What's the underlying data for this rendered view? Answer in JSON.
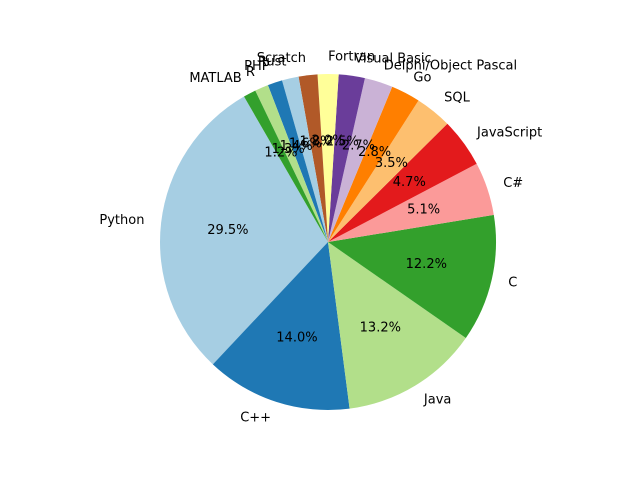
{
  "chart_data": {
    "type": "pie",
    "title": "",
    "start_angle_deg": 120,
    "direction": "counterclockwise",
    "edge_color": "#ffffff",
    "slices": [
      {
        "label": "Python",
        "value": 29.5,
        "pct_label": "29.5%",
        "color": "#a6cee3"
      },
      {
        "label": "C++",
        "value": 14.0,
        "pct_label": "14.0%",
        "color": "#1f78b4"
      },
      {
        "label": "Java",
        "value": 13.2,
        "pct_label": "13.2%",
        "color": "#b2df8a"
      },
      {
        "label": "C",
        "value": 12.2,
        "pct_label": "12.2%",
        "color": "#33a02c"
      },
      {
        "label": "C#",
        "value": 5.1,
        "pct_label": "5.1%",
        "color": "#fb9a99"
      },
      {
        "label": "JavaScript",
        "value": 4.7,
        "pct_label": "4.7%",
        "color": "#e31a1c"
      },
      {
        "label": "SQL",
        "value": 3.5,
        "pct_label": "3.5%",
        "color": "#fdbf6f"
      },
      {
        "label": "Go",
        "value": 2.8,
        "pct_label": "2.8%",
        "color": "#ff7f00"
      },
      {
        "label": "Delphi/Object Pascal",
        "value": 2.7,
        "pct_label": "2.7%",
        "color": "#cab2d6"
      },
      {
        "label": "Visual Basic",
        "value": 2.5,
        "pct_label": "2.5%",
        "color": "#6a3d9a"
      },
      {
        "label": "Fortran",
        "value": 2.0,
        "pct_label": "2.0%",
        "color": "#ffff99"
      },
      {
        "label": "Scratch",
        "value": 1.8,
        "pct_label": "1.8%",
        "color": "#b15928"
      },
      {
        "label": "Rust",
        "value": 1.6,
        "pct_label": "1.6%",
        "color": "#a6cee3"
      },
      {
        "label": "PHP",
        "value": 1.4,
        "pct_label": "1.4%",
        "color": "#1f78b4"
      },
      {
        "label": "R",
        "value": 1.3,
        "pct_label": "1.3%",
        "color": "#b2df8a"
      },
      {
        "label": "MATLAB",
        "value": 1.2,
        "pct_label": "1.2%",
        "color": "#33a02c"
      }
    ]
  }
}
